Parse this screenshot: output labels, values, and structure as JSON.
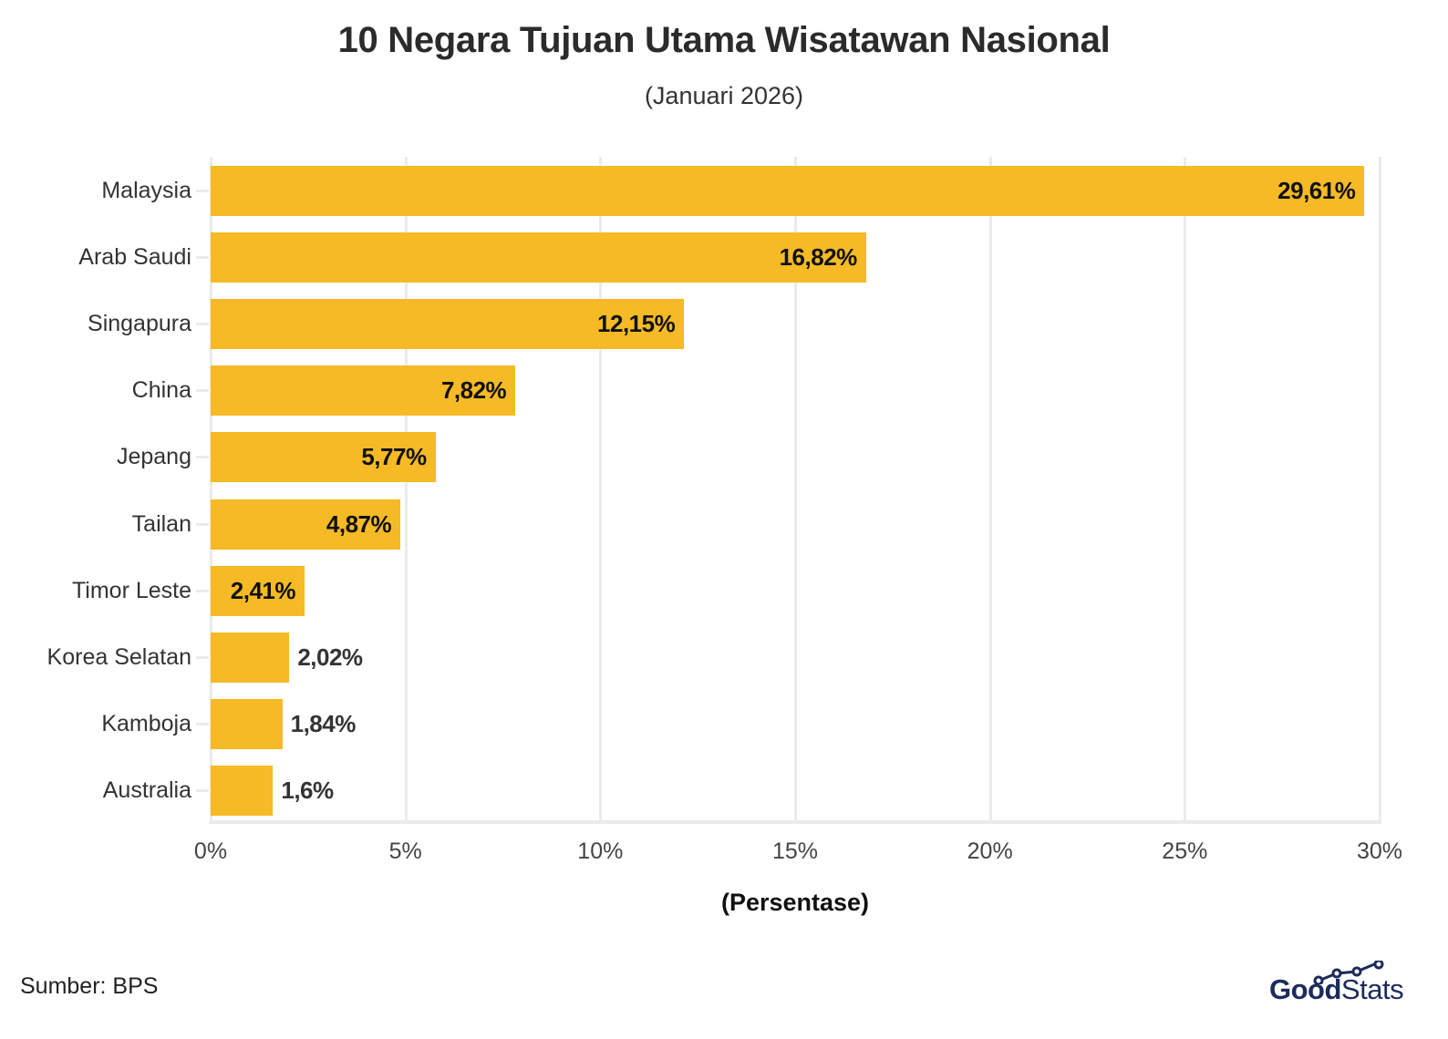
{
  "header": {
    "title": "10 Negara Tujuan Utama Wisatawan Nasional",
    "subtitle": "(Januari 2026)"
  },
  "axis": {
    "x_ticks": [
      "0%",
      "5%",
      "10%",
      "15%",
      "20%",
      "25%",
      "30%"
    ],
    "x_label": "(Persentase)"
  },
  "footer": {
    "source": "Sumber: BPS",
    "logo_bold": "Good",
    "logo_light": "Stats"
  },
  "colors": {
    "bar": "#f5ba25",
    "grid": "#ebebeb",
    "logo": "#1c2b5a"
  },
  "chart_data": {
    "type": "bar",
    "orientation": "horizontal",
    "title": "10 Negara Tujuan Utama Wisatawan Nasional",
    "subtitle": "(Januari 2026)",
    "xlabel": "(Persentase)",
    "ylabel": "",
    "xlim": [
      0,
      30
    ],
    "x_ticks": [
      0,
      5,
      10,
      15,
      20,
      25,
      30
    ],
    "grid": true,
    "legend": "none",
    "categories": [
      "Malaysia",
      "Arab Saudi",
      "Singapura",
      "China",
      "Jepang",
      "Tailan",
      "Timor Leste",
      "Korea Selatan",
      "Kamboja",
      "Australia"
    ],
    "values": [
      29.61,
      16.82,
      12.15,
      7.82,
      5.77,
      4.87,
      2.41,
      2.02,
      1.84,
      1.6
    ],
    "labels": [
      "29,61%",
      "16,82%",
      "12,15%",
      "7,82%",
      "5,77%",
      "4,87%",
      "2,41%",
      "2,02%",
      "1,84%",
      "1,6%"
    ],
    "source": "Sumber: BPS"
  }
}
